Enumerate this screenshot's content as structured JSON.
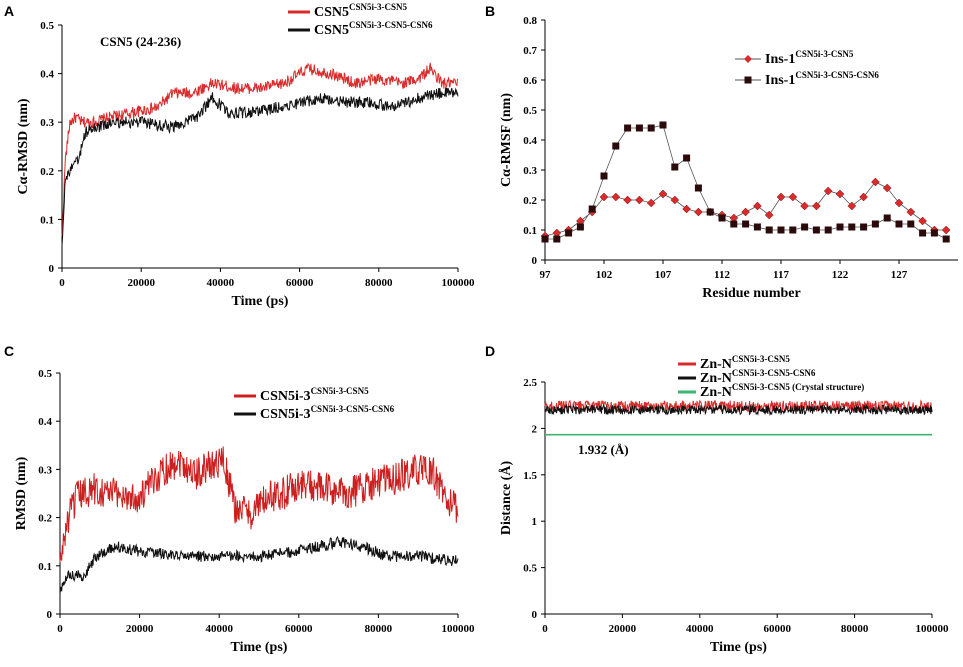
{
  "chart_data": [
    {
      "panel": "A",
      "type": "line",
      "title": "",
      "annotation": "CSN5 (24-236)",
      "xlabel": "Time (ps)",
      "ylabel": "Cα-RMSD (nm)",
      "xlim": [
        0,
        100000
      ],
      "ylim": [
        0,
        0.5
      ],
      "xticks": [
        0,
        20000,
        40000,
        60000,
        80000,
        100000
      ],
      "yticks": [
        0,
        0.1,
        0.2,
        0.3,
        0.4,
        0.5
      ],
      "legend_position": "top-center",
      "series": [
        {
          "name": "CSN5",
          "sup": "CSN5i-3-CSN5",
          "color": "#d92b2b",
          "noise": 0.012,
          "points": [
            [
              0,
              0.06
            ],
            [
              800,
              0.22
            ],
            [
              2000,
              0.3
            ],
            [
              3500,
              0.31
            ],
            [
              5000,
              0.3
            ],
            [
              8000,
              0.3
            ],
            [
              12000,
              0.31
            ],
            [
              18000,
              0.32
            ],
            [
              24000,
              0.33
            ],
            [
              28000,
              0.36
            ],
            [
              33000,
              0.36
            ],
            [
              38000,
              0.38
            ],
            [
              44000,
              0.37
            ],
            [
              50000,
              0.37
            ],
            [
              56000,
              0.38
            ],
            [
              62000,
              0.41
            ],
            [
              68000,
              0.4
            ],
            [
              74000,
              0.38
            ],
            [
              80000,
              0.39
            ],
            [
              86000,
              0.38
            ],
            [
              90000,
              0.39
            ],
            [
              93000,
              0.41
            ],
            [
              96000,
              0.38
            ],
            [
              100000,
              0.38
            ]
          ]
        },
        {
          "name": "CSN5",
          "sup": "CSN5i-3-CSN5-CSN6",
          "color": "#111111",
          "noise": 0.012,
          "points": [
            [
              0,
              0.05
            ],
            [
              800,
              0.18
            ],
            [
              2000,
              0.2
            ],
            [
              4000,
              0.22
            ],
            [
              6000,
              0.28
            ],
            [
              9000,
              0.29
            ],
            [
              14000,
              0.3
            ],
            [
              20000,
              0.3
            ],
            [
              28000,
              0.29
            ],
            [
              34000,
              0.31
            ],
            [
              38000,
              0.35
            ],
            [
              42000,
              0.32
            ],
            [
              48000,
              0.32
            ],
            [
              54000,
              0.33
            ],
            [
              60000,
              0.34
            ],
            [
              66000,
              0.35
            ],
            [
              72000,
              0.34
            ],
            [
              78000,
              0.34
            ],
            [
              84000,
              0.33
            ],
            [
              90000,
              0.35
            ],
            [
              96000,
              0.36
            ],
            [
              100000,
              0.36
            ]
          ]
        }
      ]
    },
    {
      "panel": "B",
      "type": "line",
      "title": "",
      "xlabel": "Residue number",
      "ylabel": "Cα-RMSF (nm)",
      "xlim": [
        97,
        132
      ],
      "ylim": [
        0,
        0.8
      ],
      "xticks": [
        97,
        102,
        107,
        112,
        117,
        122,
        127
      ],
      "yticks": [
        0,
        0.1,
        0.2,
        0.3,
        0.4,
        0.5,
        0.6,
        0.7,
        0.8
      ],
      "legend_position": "top-right",
      "x": [
        97,
        98,
        99,
        100,
        101,
        102,
        103,
        104,
        105,
        106,
        107,
        108,
        109,
        110,
        111,
        112,
        113,
        114,
        115,
        116,
        117,
        118,
        119,
        120,
        121,
        122,
        123,
        124,
        125,
        126,
        127,
        128,
        129,
        130,
        131
      ],
      "series": [
        {
          "name": "Ins-1",
          "sup": "CSN5i-3-CSN5",
          "color": "#d92b2b",
          "marker": "diamond",
          "values": [
            0.08,
            0.09,
            0.1,
            0.13,
            0.16,
            0.21,
            0.21,
            0.2,
            0.2,
            0.19,
            0.22,
            0.2,
            0.17,
            0.16,
            0.16,
            0.15,
            0.14,
            0.16,
            0.18,
            0.15,
            0.21,
            0.21,
            0.18,
            0.18,
            0.23,
            0.22,
            0.18,
            0.21,
            0.26,
            0.24,
            0.19,
            0.16,
            0.13,
            0.1,
            0.1
          ]
        },
        {
          "name": "Ins-1",
          "sup": "CSN5i-3-CSN5-CSN6",
          "color": "#2a0a0a",
          "marker": "square",
          "values": [
            0.07,
            0.07,
            0.09,
            0.11,
            0.17,
            0.28,
            0.38,
            0.44,
            0.44,
            0.44,
            0.45,
            0.31,
            0.34,
            0.24,
            0.16,
            0.14,
            0.12,
            0.12,
            0.11,
            0.1,
            0.1,
            0.1,
            0.11,
            0.1,
            0.1,
            0.11,
            0.11,
            0.11,
            0.12,
            0.14,
            0.12,
            0.12,
            0.09,
            0.09,
            0.07
          ]
        }
      ]
    },
    {
      "panel": "C",
      "type": "line",
      "title": "",
      "xlabel": "Time (ps)",
      "ylabel": "RMSD (nm)",
      "xlim": [
        0,
        100000
      ],
      "ylim": [
        0,
        0.5
      ],
      "xticks": [
        0,
        20000,
        40000,
        60000,
        80000,
        100000
      ],
      "yticks": [
        0,
        0.1,
        0.2,
        0.3,
        0.4,
        0.5
      ],
      "legend_position": "top-center",
      "series": [
        {
          "name": "CSN5i-3",
          "sup": "CSN5i-3-CSN5",
          "color": "#cc1f1f",
          "noise": 0.035,
          "points": [
            [
              0,
              0.1
            ],
            [
              1500,
              0.18
            ],
            [
              4000,
              0.24
            ],
            [
              8000,
              0.26
            ],
            [
              14000,
              0.25
            ],
            [
              20000,
              0.24
            ],
            [
              26000,
              0.3
            ],
            [
              30000,
              0.32
            ],
            [
              34000,
              0.29
            ],
            [
              38000,
              0.31
            ],
            [
              41000,
              0.32
            ],
            [
              44000,
              0.22
            ],
            [
              48000,
              0.21
            ],
            [
              52000,
              0.24
            ],
            [
              56000,
              0.25
            ],
            [
              60000,
              0.27
            ],
            [
              66000,
              0.26
            ],
            [
              72000,
              0.25
            ],
            [
              78000,
              0.27
            ],
            [
              84000,
              0.28
            ],
            [
              90000,
              0.3
            ],
            [
              94000,
              0.29
            ],
            [
              97000,
              0.24
            ],
            [
              100000,
              0.21
            ]
          ]
        },
        {
          "name": "CSN5i-3",
          "sup": "CSN5i-3-CSN5-CSN6",
          "color": "#111111",
          "noise": 0.012,
          "points": [
            [
              0,
              0.05
            ],
            [
              2000,
              0.08
            ],
            [
              6000,
              0.08
            ],
            [
              9000,
              0.12
            ],
            [
              14000,
              0.14
            ],
            [
              20000,
              0.13
            ],
            [
              30000,
              0.12
            ],
            [
              40000,
              0.12
            ],
            [
              50000,
              0.12
            ],
            [
              60000,
              0.13
            ],
            [
              70000,
              0.15
            ],
            [
              76000,
              0.14
            ],
            [
              82000,
              0.12
            ],
            [
              90000,
              0.12
            ],
            [
              100000,
              0.11
            ]
          ]
        }
      ]
    },
    {
      "panel": "D",
      "type": "line",
      "title": "",
      "annotation": "1.932 (Å)",
      "xlabel": "Time (ps)",
      "ylabel": "Distance (Å)",
      "xlim": [
        0,
        100000
      ],
      "ylim": [
        0,
        2.5
      ],
      "xticks": [
        0,
        20000,
        40000,
        60000,
        80000,
        100000
      ],
      "yticks": [
        0,
        0.5,
        1,
        1.5,
        2,
        2.5
      ],
      "legend_position": "top-center",
      "series": [
        {
          "name": "Zn-N",
          "sup": "CSN5i-3-CSN5",
          "color": "#d92b2b",
          "noise": 0.06,
          "points": [
            [
              0,
              2.24
            ],
            [
              100000,
              2.24
            ]
          ]
        },
        {
          "name": "Zn-N",
          "sup": "CSN5i-3-CSN5-CSN6",
          "color": "#111111",
          "noise": 0.05,
          "points": [
            [
              0,
              2.2
            ],
            [
              100000,
              2.2
            ]
          ]
        },
        {
          "name": "Zn-N",
          "sup": "CSN5i-3-CSN5 (Crystal structure)",
          "color": "#3cb371",
          "noise": 0,
          "points": [
            [
              0,
              1.932
            ],
            [
              100000,
              1.932
            ]
          ]
        }
      ]
    }
  ],
  "panel_labels": [
    "A",
    "B",
    "C",
    "D"
  ]
}
